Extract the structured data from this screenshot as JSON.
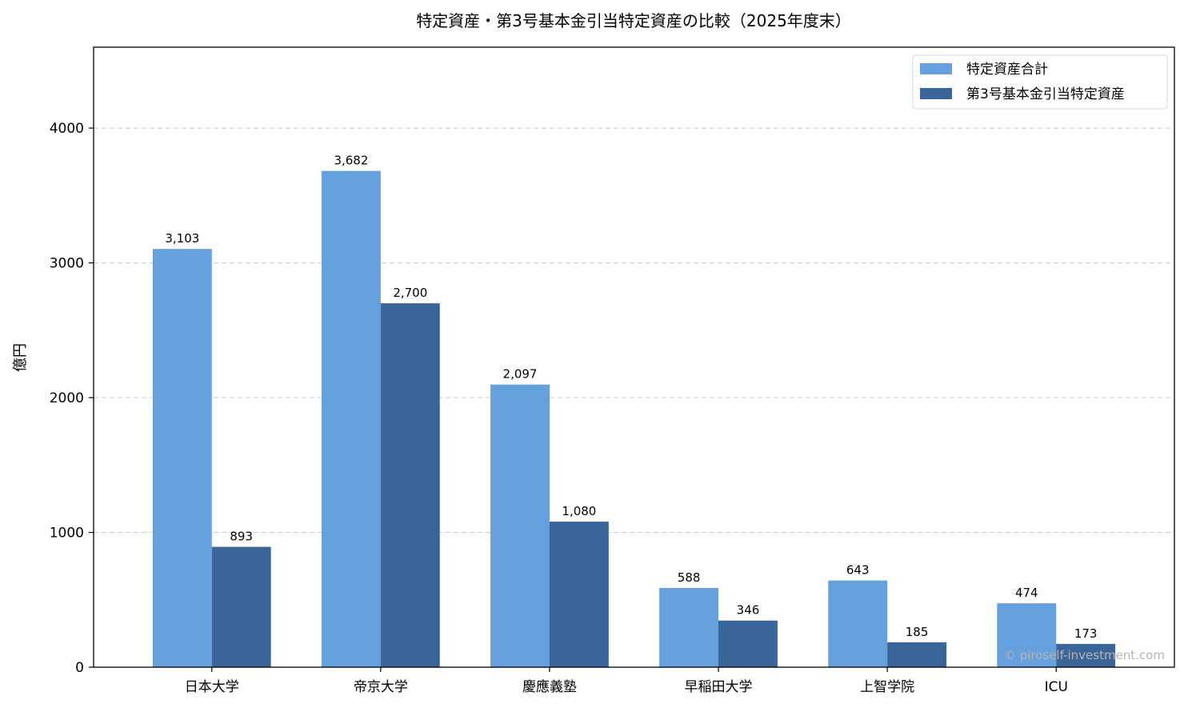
{
  "chart_data": {
    "type": "bar",
    "title": "特定資産・第3号基本金引当特定資産の比較（2025年度末）",
    "xlabel": "",
    "ylabel": "億円",
    "ylim": [
      0,
      4600
    ],
    "yticks": [
      0,
      1000,
      2000,
      3000,
      4000
    ],
    "grid": "horizontal dashed",
    "legend_position": "top-right",
    "categories": [
      "日本大学",
      "帝京大学",
      "慶應義塾",
      "早稲田大学",
      "上智学院",
      "ICU"
    ],
    "series": [
      {
        "name": "特定資産合計",
        "color": "#63A0DD",
        "values": [
          3103,
          3682,
          2097,
          588,
          643,
          474
        ],
        "labels": [
          "3,103",
          "3,682",
          "2,097",
          "588",
          "643",
          "474"
        ]
      },
      {
        "name": "第3号基本金引当特定資産",
        "color": "#3A6599",
        "values": [
          893,
          2700,
          1080,
          346,
          185,
          173
        ],
        "labels": [
          "893",
          "2,700",
          "1,080",
          "346",
          "185",
          "173"
        ]
      }
    ]
  },
  "watermark": "© piroself-investment.com"
}
